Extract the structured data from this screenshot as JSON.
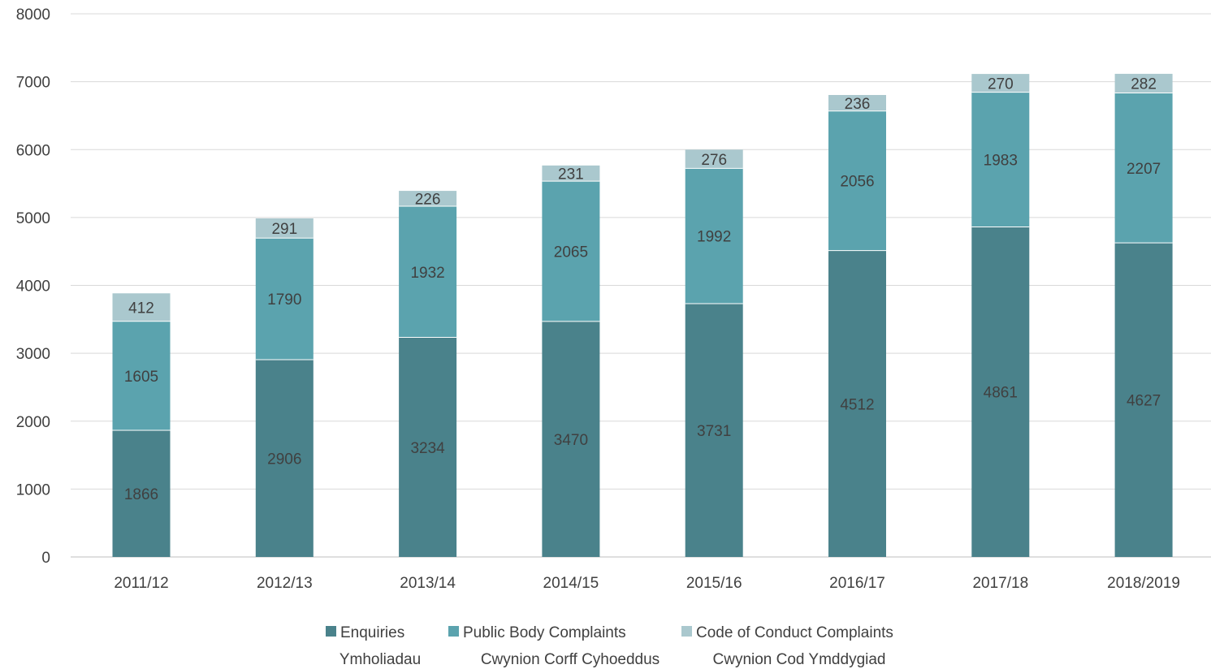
{
  "chart_data": {
    "type": "bar",
    "stacked": true,
    "categories": [
      "2011/12",
      "2012/13",
      "2013/14",
      "2014/15",
      "2015/16",
      "2016/17",
      "2017/18",
      "2018/2019"
    ],
    "series": [
      {
        "name": "Enquiries",
        "name_cy": "Ymholiadau",
        "color": "#4a828b",
        "values": [
          1866,
          2906,
          3234,
          3470,
          3731,
          4512,
          4861,
          4627
        ]
      },
      {
        "name": "Public Body Complaints",
        "name_cy": "Cwynion Corff Cyhoeddus",
        "color": "#5ba3ae",
        "values": [
          1605,
          1790,
          1932,
          2065,
          1992,
          2056,
          1983,
          2207
        ]
      },
      {
        "name": "Code of Conduct Complaints",
        "name_cy": "Cwynion Cod Ymddygiad",
        "color": "#aac8ce",
        "values": [
          412,
          291,
          226,
          231,
          276,
          236,
          270,
          282
        ]
      }
    ],
    "ylim": [
      0,
      8000
    ],
    "yticks": [
      0,
      1000,
      2000,
      3000,
      4000,
      5000,
      6000,
      7000,
      8000
    ],
    "title": "",
    "xlabel": "",
    "ylabel": "",
    "grid": true,
    "legend_position": "bottom-center"
  }
}
